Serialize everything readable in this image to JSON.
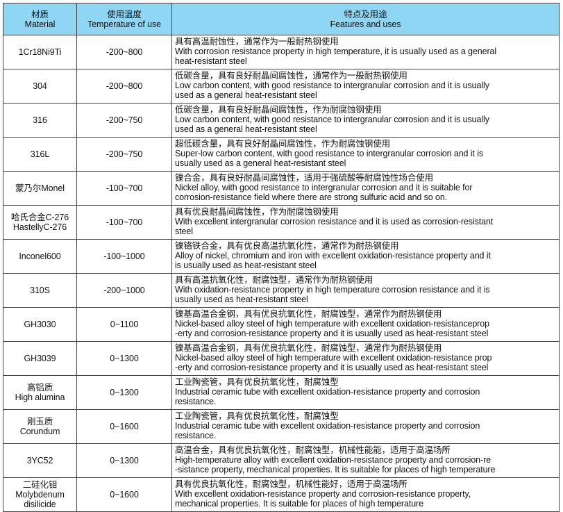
{
  "header": {
    "material_cn": "材质",
    "material_en": "Material",
    "temp_cn": "使用温度",
    "temp_en": "Temperature of use",
    "features_cn": "特点及用途",
    "features_en": "Features and uses"
  },
  "header_color": "#8fd6f5",
  "rows": [
    {
      "material": [
        "1Cr18Ni9Ti"
      ],
      "temp": "-200~800",
      "cn": "具有高温耐蚀性，通常作为一般耐热钢使用",
      "en": [
        "With corrosion resistance property in high temperature, it is usually used as a general",
        "heat-resistant steel"
      ]
    },
    {
      "material": [
        "304"
      ],
      "temp": "-200~800",
      "cn": "低碳含量，具有良好耐晶间腐蚀性，通常作为一般耐热钢使用",
      "en": [
        "Low carbon content, with good resistance to intergranular corrosion and it is usually",
        "used as a general heat-resistant steel"
      ]
    },
    {
      "material": [
        "316"
      ],
      "temp": "-200~750",
      "cn": "低碳含量，具有良好耐晶间腐蚀性，作为耐腐蚀钢使用",
      "en": [
        "Low carbon content, with good resistance to intergranular corrosion and it is usually",
        "used as a general heat-resistant steel"
      ]
    },
    {
      "material": [
        "316L"
      ],
      "temp": "-200~750",
      "cn": "超低碳含量，具有良好耐晶间腐蚀性，作为耐腐蚀钢使用",
      "en": [
        "Super-low carbon content, with good resistance to intergranular corrosion and it is",
        "usually used as a general heat-resistant steel"
      ]
    },
    {
      "material": [
        "蒙乃尔Monel"
      ],
      "temp": "-100~700",
      "cn": "镍合金，具有良好耐晶间腐蚀性，适用于强硫酸等耐腐蚀性场合使用",
      "en": [
        "Nickel alloy, with good resistance to intergranular corrosion and it is suitable for",
        "corrosion-resistance field where there are strong sulfuric acid and so on."
      ]
    },
    {
      "material": [
        "哈氏合金C-276",
        "HastellyC-276"
      ],
      "temp": "-100~700",
      "cn": "具有优良耐晶间腐蚀性，作为耐腐蚀钢使用",
      "en": [
        "With excellent intergranular corrosion resistance and it is used as corrosion-resistant",
        "steel"
      ]
    },
    {
      "material": [
        "Inconel600"
      ],
      "temp": "-100~1000",
      "cn": "镍铬铁合金，具有优良高温抗氧化性，通常作为耐热钢使用",
      "en": [
        "Alloy of nickel, chromium and iron with excellent oxidation-resistance property and it",
        "is usually used as heat-resistant steel"
      ]
    },
    {
      "material": [
        "310S"
      ],
      "temp": "-200~1000",
      "cn": "具有高温抗氧化性，耐腐蚀型，通常作为耐热钢使用",
      "en": [
        "With oxidation-resistance property in high temperature  corrosion resistance and it is",
        "usually used as heat-resistant steel"
      ]
    },
    {
      "material": [
        "GH3030"
      ],
      "temp": "0~1100",
      "cn": "镍基高温合金钢，具有优良抗氧化性，耐腐蚀型，通常作为耐热钢使用",
      "en": [
        "Nickel-based alloy steel of high temperature with excellent oxidation-resistanceprop",
        "-erty and corrosion-resistance property and it is usually used as heat-resistant steel"
      ]
    },
    {
      "material": [
        "GH3039"
      ],
      "temp": "0~1300",
      "cn": "镍基高温合金钢，具有优良抗氧化性，耐腐蚀型，通常作为耐热钢使用",
      "en": [
        "Nickel-based alloy steel of high temperature with excellent oxidation-resistance prop",
        "-erty and corrosion-resistance property and it is usually used as heat-resistant steel"
      ]
    },
    {
      "material": [
        "高铝质",
        "High alumina"
      ],
      "temp": "0~1300",
      "cn": "工业陶瓷管，具有优良抗氧化性，耐腐蚀型",
      "en": [
        "Industrial ceramic tube with excellent oxidation-resistance property and corrosion",
        "resistance."
      ]
    },
    {
      "material": [
        "刚玉质",
        "Corundum"
      ],
      "temp": "0~1600",
      "cn": "工业陶瓷管，具有优良抗氧化性，耐腐蚀型",
      "en": [
        "Industrial ceramic tube with excellent oxidation-resistance property and corrosion",
        "resistance."
      ]
    },
    {
      "material": [
        "3YC52"
      ],
      "temp": "0~1300",
      "cn": "高温合金，具有优良抗氧化性，耐腐蚀型，机械性能能，适用于高温场所",
      "en": [
        "High-temperature alloy with excellent oxidation-resistance property and corrosion-re",
        "-sistance property, mechanical properties. It is suitable for places of high temperature"
      ]
    },
    {
      "material": [
        "二硅化钼",
        "Molybdenum",
        "disilicide"
      ],
      "temp": "0~1600",
      "cn": "具有优良抗氧化性，耐腐蚀型，机械性能好，适用于高温场所",
      "en": [
        "With excellent oxidation-resistance property and corrosion-resistance property,",
        "mechanical properties. It is suitable for places of high temperature"
      ]
    }
  ]
}
